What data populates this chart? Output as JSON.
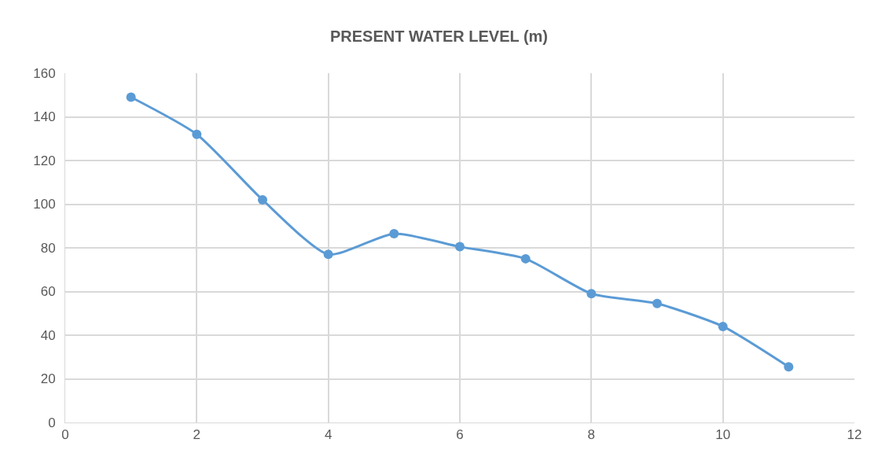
{
  "chart_data": {
    "type": "line",
    "title": "PRESENT WATER LEVEL (m)",
    "x": [
      1,
      2,
      3,
      4,
      5,
      6,
      7,
      8,
      9,
      10,
      11
    ],
    "series": [
      {
        "color": "#5b9bd5",
        "values": [
          149,
          132,
          102,
          77,
          86.5,
          80.5,
          75,
          59,
          54.5,
          44,
          25.5
        ]
      }
    ],
    "xlim": [
      0,
      12
    ],
    "xticks": [
      0,
      2,
      4,
      6,
      8,
      10,
      12
    ],
    "ylim": [
      0,
      160
    ],
    "yticks": [
      0,
      20,
      40,
      60,
      80,
      100,
      120,
      140,
      160
    ],
    "grid": true,
    "marker": "circle",
    "line_style": "solid"
  }
}
